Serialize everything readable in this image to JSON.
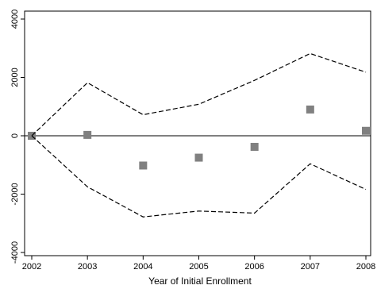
{
  "chart_data": {
    "type": "scatter",
    "title": "",
    "xlabel": "Year of Initial Enrollment",
    "ylabel": "",
    "x_ticks": [
      2002,
      2003,
      2004,
      2005,
      2006,
      2007,
      2008
    ],
    "y_ticks": [
      -4000,
      -2000,
      0,
      2000,
      4000
    ],
    "xlim": [
      2002,
      2008
    ],
    "ylim": [
      -4000,
      4000
    ],
    "grid": false,
    "reference_line": 0,
    "series": [
      {
        "style": "square-markers",
        "color": "#808080",
        "x": [
          2002,
          2003,
          2004,
          2005,
          2006,
          2007,
          2008
        ],
        "y": [
          0,
          30,
          -1020,
          -750,
          -380,
          900,
          170
        ]
      },
      {
        "style": "dashed-line",
        "color": "#000000",
        "x": [
          2002,
          2003,
          2004,
          2005,
          2006,
          2007,
          2008
        ],
        "y": [
          0,
          1820,
          720,
          1080,
          1900,
          2820,
          2180
        ]
      },
      {
        "style": "dashed-line",
        "color": "#000000",
        "x": [
          2002,
          2003,
          2004,
          2005,
          2006,
          2007,
          2008
        ],
        "y": [
          0,
          -1750,
          -2780,
          -2580,
          -2650,
          -960,
          -1840
        ]
      }
    ]
  }
}
